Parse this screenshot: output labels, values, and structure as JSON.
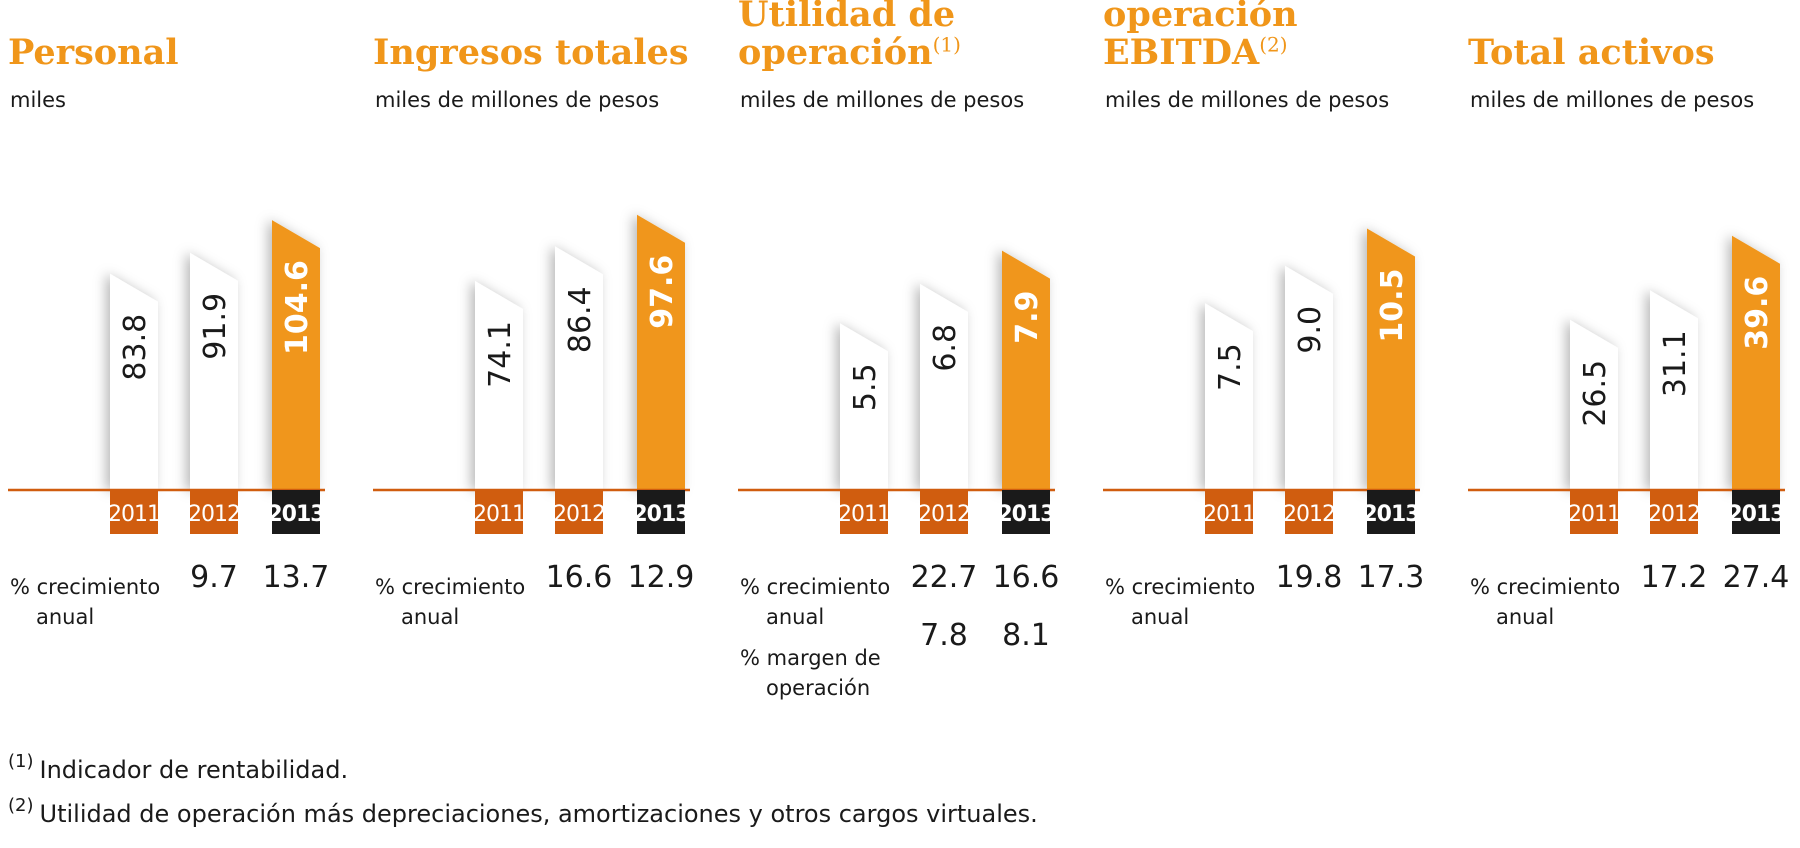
{
  "colors": {
    "orange": "#f0961a",
    "dark_orange": "#d05d0f",
    "black": "#1a1a1a",
    "white": "#ffffff"
  },
  "growth_label": [
    "% crecimiento",
    "anual"
  ],
  "margin_label": [
    "% margen de",
    "operación"
  ],
  "chart_data": [
    {
      "type": "bar",
      "title": "Personal",
      "title_sup": "",
      "unit": "miles",
      "categories": [
        "2011",
        "2012",
        "2013"
      ],
      "values": [
        83.8,
        91.9,
        104.6
      ],
      "labels": [
        "83.8",
        "91.9",
        "104.6"
      ],
      "growth": [
        "",
        "9.7",
        "13.7"
      ],
      "margin": []
    },
    {
      "type": "bar",
      "title": "Ingresos totales",
      "title_sup": "",
      "unit": "miles de millones de pesos",
      "categories": [
        "2011",
        "2012",
        "2013"
      ],
      "values": [
        74.1,
        86.4,
        97.6
      ],
      "labels": [
        "74.1",
        "86.4",
        "97.6"
      ],
      "growth": [
        "",
        "16.6",
        "12.9"
      ],
      "margin": []
    },
    {
      "type": "bar",
      "title": "Utilidad de operación",
      "title_sup": "(1)",
      "unit": "miles de millones de pesos",
      "categories": [
        "2011",
        "2012",
        "2013"
      ],
      "values": [
        5.5,
        6.8,
        7.9
      ],
      "labels": [
        "5.5",
        "6.8",
        "7.9"
      ],
      "growth": [
        "",
        "22.7",
        "16.6"
      ],
      "margin": [
        "",
        "7.8",
        "8.1"
      ]
    },
    {
      "type": "bar",
      "title": "Flujo bruto de operación EBITDA",
      "title_sup": "(2)",
      "unit": "miles de millones de pesos",
      "categories": [
        "2011",
        "2012",
        "2013"
      ],
      "values": [
        7.5,
        9.0,
        10.5
      ],
      "labels": [
        "7.5",
        "9.0",
        "10.5"
      ],
      "growth": [
        "",
        "19.8",
        "17.3"
      ],
      "margin": []
    },
    {
      "type": "bar",
      "title": "Total activos",
      "title_sup": "",
      "unit": "miles de millones de pesos",
      "categories": [
        "2011",
        "2012",
        "2013"
      ],
      "values": [
        26.5,
        31.1,
        39.6
      ],
      "labels": [
        "26.5",
        "31.1",
        "39.6"
      ],
      "growth": [
        "",
        "17.2",
        "27.4"
      ],
      "margin": []
    }
  ],
  "footnotes": [
    {
      "mark": "(1)",
      "text": "Indicador de rentabilidad."
    },
    {
      "mark": "(2)",
      "text": "Utilidad de operación más depreciaciones, amortizaciones y otros cargos virtuales."
    }
  ]
}
